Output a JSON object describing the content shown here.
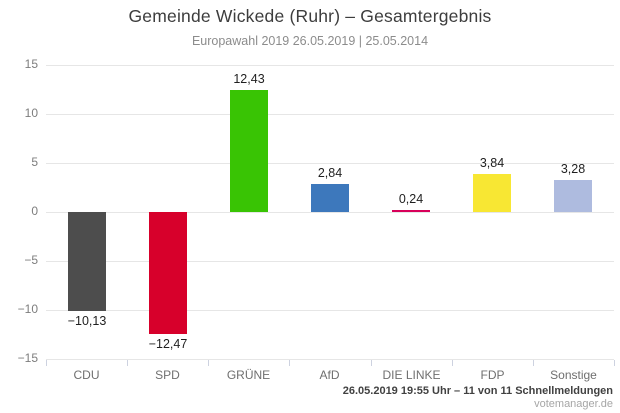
{
  "header": {
    "title": "Gemeinde Wickede (Ruhr) – Gesamtergebnis",
    "subtitle": "Europawahl 2019 26.05.2019 | 25.05.2014"
  },
  "footer": {
    "status": "26.05.2019 19:55 Uhr – 11 von 11 Schnellmeldungen",
    "brand": "votemanager.de"
  },
  "chart_data": {
    "type": "bar",
    "title": "Gemeinde Wickede (Ruhr) – Gesamtergebnis",
    "subtitle": "Europawahl 2019 26.05.2019 | 25.05.2014",
    "categories": [
      "CDU",
      "SPD",
      "GRÜNE",
      "AfD",
      "DIE LINKE",
      "FDP",
      "Sonstige"
    ],
    "values": [
      -10.13,
      -12.47,
      12.43,
      2.84,
      0.24,
      3.84,
      3.28
    ],
    "value_labels": [
      "−10,13",
      "−12,47",
      "12,43",
      "2,84",
      "0,24",
      "3,84",
      "3,28"
    ],
    "bar_colors": [
      "#4d4d4d",
      "#d7002b",
      "#39c404",
      "#3d78bc",
      "#d8005a",
      "#f8e733",
      "#aebbdf"
    ],
    "xlabel": "",
    "ylabel": "",
    "ylim": [
      -15,
      15
    ],
    "ytick_step": 5,
    "yticks": [
      15,
      10,
      5,
      0,
      -5,
      -10,
      -15
    ],
    "grid": true,
    "legend": "none",
    "gridline_color": "#e6e6e6"
  }
}
